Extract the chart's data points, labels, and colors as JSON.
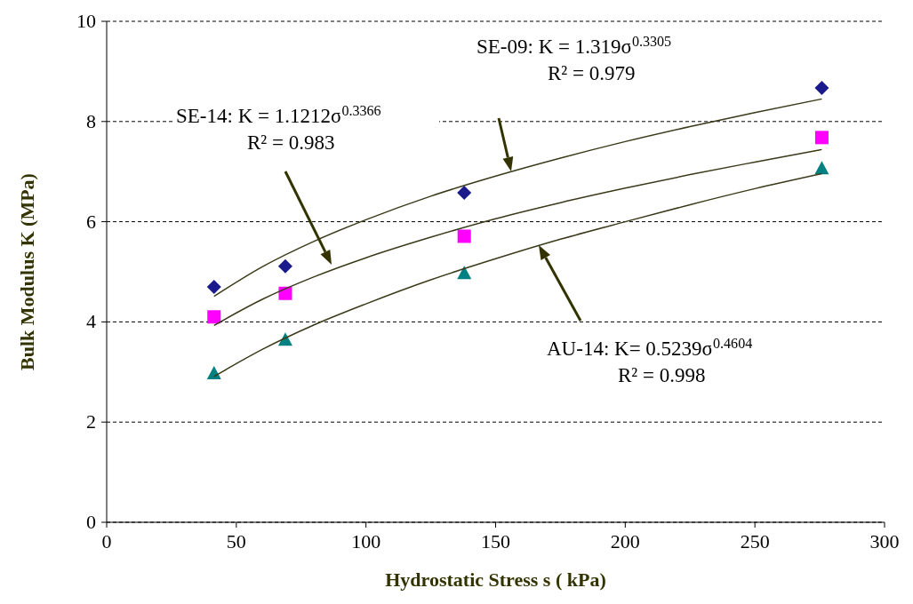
{
  "chart_data": {
    "type": "scatter",
    "xlabel": "Hydrostatic Stress s ( kPa)",
    "ylabel": "Bulk Modulus K (MPa)",
    "xlim": [
      0,
      300
    ],
    "xticks": [
      0,
      50,
      100,
      150,
      200,
      250,
      300
    ],
    "ylim": [
      0,
      10
    ],
    "yticks": [
      0,
      2,
      4,
      6,
      8,
      10
    ],
    "grid": "y",
    "series": [
      {
        "marker": "diamond",
        "color": "#1a1a8c",
        "x": [
          41.4,
          68.9,
          137.9,
          275.8
        ],
        "values": [
          4.7,
          5.11,
          6.58,
          8.67
        ]
      },
      {
        "marker": "square",
        "color": "#ff00ff",
        "x": [
          41.4,
          68.9,
          137.9,
          275.8
        ],
        "values": [
          4.1,
          4.57,
          5.71,
          7.68
        ]
      },
      {
        "marker": "triangle",
        "color": "#008080",
        "x": [
          41.4,
          68.9,
          137.9,
          275.8
        ],
        "values": [
          2.98,
          3.65,
          4.98,
          7.07
        ]
      },
      {
        "type": "line",
        "marker": "none",
        "color": "#3a3a1a",
        "x": [
          41.4,
          60,
          80,
          100,
          125,
          150,
          175,
          200,
          225,
          250,
          275.8
        ],
        "values": [
          4.51,
          5.1,
          5.61,
          6.04,
          6.51,
          6.91,
          7.27,
          7.6,
          7.9,
          8.18,
          8.45
        ]
      },
      {
        "type": "line",
        "marker": "none",
        "color": "#3a3a1a",
        "x": [
          41.4,
          60,
          80,
          100,
          125,
          150,
          175,
          200,
          225,
          250,
          275.8
        ],
        "values": [
          3.93,
          4.45,
          4.9,
          5.28,
          5.69,
          6.06,
          6.38,
          6.67,
          6.94,
          7.19,
          7.44
        ]
      },
      {
        "type": "line",
        "marker": "none",
        "color": "#3a3a1a",
        "x": [
          41.4,
          60,
          80,
          100,
          125,
          150,
          175,
          200,
          225,
          250,
          275.8
        ],
        "values": [
          2.91,
          3.45,
          3.94,
          4.36,
          4.84,
          5.26,
          5.65,
          6.0,
          6.34,
          6.66,
          6.96
        ]
      }
    ],
    "annotations": [
      "SE-09: K = 1.319σ$^{0.3305}$\nR² = 0.979",
      "SE-14: K = 1.1212σ$^{0.3366}$\nR² = 0.983",
      "AU-14: K= 0.5239σ$^{0.4604}$\nR² = 0.998"
    ]
  }
}
